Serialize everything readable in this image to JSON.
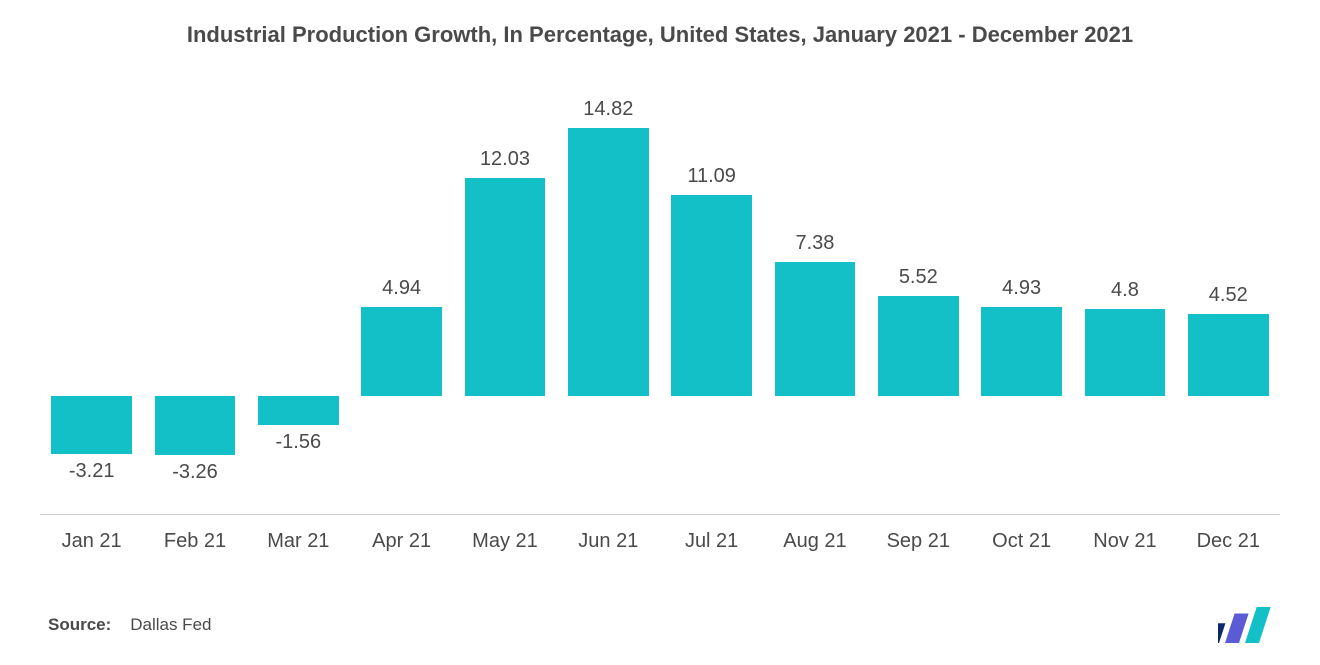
{
  "chart": {
    "type": "bar",
    "title": "Industrial Production Growth, In Percentage, United States, January 2021 - December 2021",
    "title_fontsize": 22,
    "title_color": "#4a4a4a",
    "background_color": "#ffffff",
    "categories": [
      "Jan 21",
      "Feb 21",
      "Mar 21",
      "Apr 21",
      "May 21",
      "Jun 21",
      "Jul 21",
      "Aug 21",
      "Sep 21",
      "Oct 21",
      "Nov 21",
      "Dec 21"
    ],
    "values": [
      -3.21,
      -3.26,
      -1.56,
      4.94,
      12.03,
      14.82,
      11.09,
      7.38,
      5.52,
      4.93,
      4.8,
      4.52
    ],
    "value_labels": [
      "-3.21",
      "-3.26",
      "-1.56",
      "4.94",
      "12.03",
      "14.82",
      "11.09",
      "7.38",
      "5.52",
      "4.93",
      "4.8",
      "4.52"
    ],
    "bar_color": "#14c0c7",
    "value_label_color": "#4a4a4a",
    "value_label_fontsize": 20,
    "xlabel_fontsize": 20,
    "xlabel_color": "#4a4a4a",
    "ymin": -6,
    "ymax": 18,
    "bar_width_ratio": 0.78,
    "axis_line_color": "#cfcfcf"
  },
  "source": {
    "label": "Source:",
    "text": "Dallas Fed",
    "fontsize": 17
  },
  "logo": {
    "bars": [
      {
        "color": "#0a2a6b",
        "height_ratio": 0.55
      },
      {
        "color": "#5b5bd6",
        "height_ratio": 0.82
      },
      {
        "color": "#14c0c7",
        "height_ratio": 1.0
      }
    ]
  }
}
